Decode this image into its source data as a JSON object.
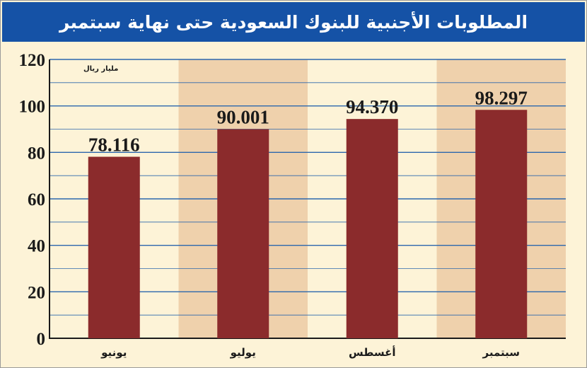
{
  "chart_data": {
    "type": "bar",
    "title": "المطلوبات الأجنبية للبنوك السعودية حتى نهاية سبتمبر",
    "unit": "مليار ريال",
    "categories": [
      "يونيو",
      "يوليو",
      "أغسطس",
      "سبتمبر"
    ],
    "values": [
      78.116,
      90.001,
      94.37,
      98.297
    ],
    "value_labels": [
      "78.116",
      "90.001",
      "94.370",
      "98.297"
    ],
    "y_ticks": [
      0,
      20,
      40,
      60,
      80,
      100,
      120
    ],
    "ylim": [
      0,
      120
    ],
    "grid": true,
    "colors": {
      "title_bar": "#1552a6",
      "bar": "#8b2b2c",
      "band_light": "#fdf3d7",
      "band_dark": "#efd1ac",
      "grid": "#2c67ad",
      "axis": "#1a1a1a"
    }
  }
}
